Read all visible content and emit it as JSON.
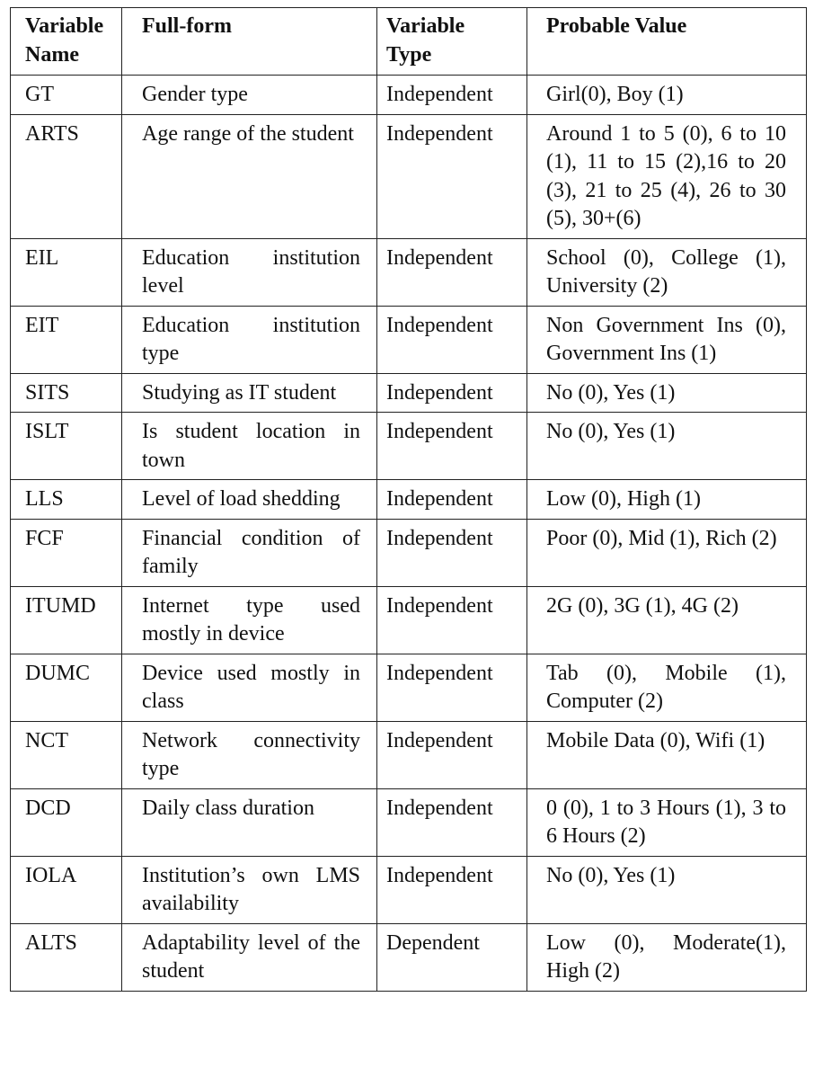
{
  "table": {
    "headers": [
      [
        "Variable",
        "Name"
      ],
      [
        "Full-form"
      ],
      [
        "Variable",
        "Type"
      ],
      [
        "Probable Value"
      ]
    ],
    "rows": [
      {
        "name": "GT",
        "full_form": "Gender type",
        "type": "Independent",
        "values": "Girl(0), Boy (1)"
      },
      {
        "name": "ARTS",
        "full_form": "Age range of the student",
        "type": "Independent",
        "values": "Around 1 to 5 (0), 6 to 10 (1), 11 to 15 (2),16 to 20 (3), 21 to 25 (4), 26 to 30 (5), 30+(6)"
      },
      {
        "name": "EIL",
        "full_form": "Education institu­tion level",
        "type": "Independent",
        "values": "School (0), College (1), University (2)"
      },
      {
        "name": "EIT",
        "full_form": "Education institu­tion type",
        "type": "Independent",
        "values": "Non Government Ins (0), Government Ins (1)"
      },
      {
        "name": "SITS",
        "full_form": "Studying as IT stu­dent",
        "type": "Independent",
        "values": "No (0), Yes (1)"
      },
      {
        "name": "ISLT",
        "full_form": "Is student location in town",
        "type": "Independent",
        "values": "No (0), Yes (1)"
      },
      {
        "name": "LLS",
        "full_form": "Level of load shed­ding",
        "type": "Independent",
        "values": "Low (0), High (1)"
      },
      {
        "name": "FCF",
        "full_form": "Financial condition of family",
        "type": "Independent",
        "values": "Poor (0), Mid (1), Rich (2)"
      },
      {
        "name": "ITUMD",
        "full_form": "Internet type used mostly in device",
        "type": "Independent",
        "values": "2G (0), 3G (1), 4G (2)"
      },
      {
        "name": "DUMC",
        "full_form": "Device used mostly in class",
        "type": "Independent",
        "values": "Tab (0), Mobile (1), Computer (2)"
      },
      {
        "name": "NCT",
        "full_form": "Network connectivity type",
        "type": "Independent",
        "values": "Mobile Data (0), Wifi (1)"
      },
      {
        "name": "DCD",
        "full_form": "Daily class dura­tion",
        "type": "Independent",
        "values": "0 (0), 1 to 3 Hours (1), 3 to 6 Hours (2)"
      },
      {
        "name": "IOLA",
        "full_form": "Institution’s own LMS availability",
        "type": "Independent",
        "values": "No (0), Yes (1)"
      },
      {
        "name": "ALTS",
        "full_form": "Adaptability level of the student",
        "type": "Dependent",
        "values": "Low (0), Moderate(1), High (2)"
      }
    ]
  }
}
